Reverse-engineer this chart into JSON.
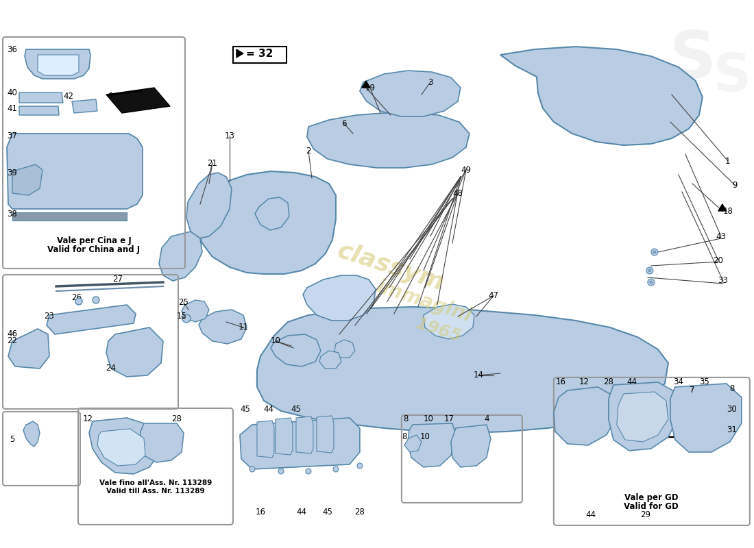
{
  "bg_color": "#ffffff",
  "part_color": "#b8cce4",
  "part_edge_color": "#5588aa",
  "watermark_color": "#d4c870",
  "watermark_text": [
    "classym",
    "immagini",
    "1965"
  ],
  "triangle32_text": "= 32",
  "inset1_label1": "Vale per Cina e J",
  "inset1_label2": "Valid for China and J",
  "inset4_label1": "Vale fino all'Ass. Nr. 113289",
  "inset4_label2": "Valid till Ass. Nr. 113289",
  "inset6_label1": "Vale per GD",
  "inset6_label2": "Valid for GD",
  "label_fontsize": 8.5,
  "note_fontsize": 8.0
}
